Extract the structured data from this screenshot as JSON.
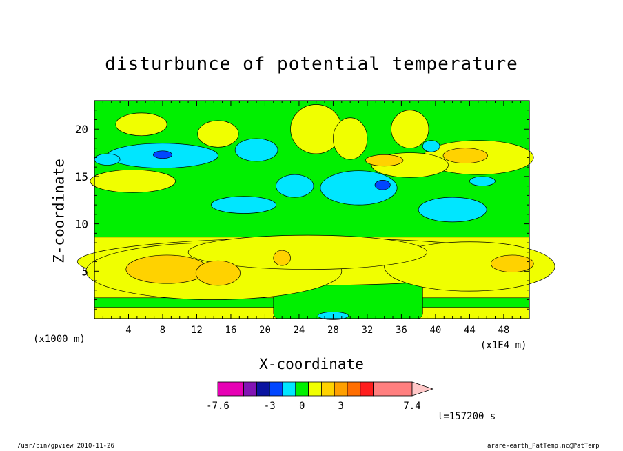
{
  "header": {
    "time_label": "t=157200 s"
  },
  "footer": {
    "left": "/usr/bin/gpview 2010-11-26",
    "right": "arare-earth_PatTemp.nc@PatTemp"
  },
  "chart_data": {
    "type": "heatmap",
    "title": "disturbunce of potential temperature",
    "xlabel": "X-coordinate",
    "ylabel": "Z-coordinate",
    "x_unit": "(x1000 m)",
    "x_scale": "(x1E4 m)",
    "xlim": [
      0,
      51
    ],
    "ylim": [
      0,
      23
    ],
    "x_ticks": [
      4,
      8,
      12,
      16,
      20,
      24,
      28,
      32,
      36,
      40,
      44,
      48
    ],
    "y_ticks": [
      5,
      10,
      15,
      20
    ],
    "background_value": 0,
    "colorbar": {
      "ticks": [
        -7.6,
        -3,
        0,
        3,
        7.4
      ],
      "tick_labels": [
        "-7.6",
        "-3",
        "0",
        "3",
        "7.4"
      ],
      "colors": [
        "#e600b4",
        "#8214b4",
        "#0a14a0",
        "#0046ff",
        "#00e6ff",
        "#00f000",
        "#f0ff00",
        "#ffd200",
        "#ffa000",
        "#ff6e00",
        "#ff1e1e",
        "#ff7f7f",
        "#ffc8c8"
      ],
      "bounds": [
        -7.6,
        -5.6,
        -4.1,
        -3.0,
        -1.5,
        -0.5,
        0.5,
        1.5,
        2.5,
        3.5,
        4.5,
        5.5,
        7.4
      ]
    },
    "features": [
      {
        "v": 0.8,
        "x": 25,
        "y": 6,
        "rx": 27,
        "ry": 2.5
      },
      {
        "v": 0.8,
        "x": 14,
        "y": 5,
        "rx": 15,
        "ry": 3
      },
      {
        "v": 0.8,
        "x": 44,
        "y": 5.5,
        "rx": 10,
        "ry": 2.6
      },
      {
        "v": 0.8,
        "x": 25,
        "y": 7,
        "rx": 14,
        "ry": 1.8
      },
      {
        "v": 2.0,
        "x": 8.5,
        "y": 5.2,
        "rx": 4.8,
        "ry": 1.5
      },
      {
        "v": 2.0,
        "x": 14.5,
        "y": 4.8,
        "rx": 2.6,
        "ry": 1.3
      },
      {
        "v": 2.0,
        "x": 49,
        "y": 5.8,
        "rx": 2.5,
        "ry": 0.9
      },
      {
        "v": 2.0,
        "x": 22,
        "y": 6.4,
        "rx": 1.0,
        "ry": 0.8
      },
      {
        "v": 0.8,
        "x": 4.5,
        "y": 14.5,
        "rx": 5,
        "ry": 1.2
      },
      {
        "v": 0.8,
        "x": 14.5,
        "y": 19.5,
        "rx": 2.4,
        "ry": 1.4
      },
      {
        "v": 0.8,
        "x": 5.5,
        "y": 20.5,
        "rx": 3,
        "ry": 1.2
      },
      {
        "v": 0.8,
        "x": 45,
        "y": 17,
        "rx": 6.5,
        "ry": 1.8
      },
      {
        "v": 0.8,
        "x": 37,
        "y": 16.2,
        "rx": 4.5,
        "ry": 1.3
      },
      {
        "v": 0.8,
        "x": 26,
        "y": 20,
        "rx": 3,
        "ry": 2.6
      },
      {
        "v": 0.8,
        "x": 30,
        "y": 19,
        "rx": 2,
        "ry": 2.2
      },
      {
        "v": 0.8,
        "x": 37,
        "y": 20,
        "rx": 2.2,
        "ry": 2.0
      },
      {
        "v": 2.0,
        "x": 43.5,
        "y": 17.2,
        "rx": 2.6,
        "ry": 0.8
      },
      {
        "v": 2.0,
        "x": 34,
        "y": 16.7,
        "rx": 2.2,
        "ry": 0.6
      },
      {
        "v": -1.0,
        "x": 8,
        "y": 17.2,
        "rx": 6.5,
        "ry": 1.3
      },
      {
        "v": -1.0,
        "x": 17.5,
        "y": 12,
        "rx": 3.8,
        "ry": 0.9
      },
      {
        "v": -1.0,
        "x": 31,
        "y": 13.8,
        "rx": 4.5,
        "ry": 1.8
      },
      {
        "v": -1.0,
        "x": 23.5,
        "y": 14,
        "rx": 2.2,
        "ry": 1.2
      },
      {
        "v": -1.0,
        "x": 42,
        "y": 11.5,
        "rx": 4,
        "ry": 1.3
      },
      {
        "v": -1.0,
        "x": 19,
        "y": 17.8,
        "rx": 2.5,
        "ry": 1.2
      },
      {
        "v": -1.0,
        "x": 45.5,
        "y": 14.5,
        "rx": 1.5,
        "ry": 0.5
      },
      {
        "v": -1.0,
        "x": 39.5,
        "y": 18.2,
        "rx": 1,
        "ry": 0.6
      },
      {
        "v": -1.0,
        "x": 1.5,
        "y": 16.8,
        "rx": 1.5,
        "ry": 0.6
      },
      {
        "v": -2.2,
        "x": 8,
        "y": 17.3,
        "rx": 1.1,
        "ry": 0.4
      },
      {
        "v": -2.2,
        "x": 33.8,
        "y": 14.1,
        "rx": 0.9,
        "ry": 0.5
      },
      {
        "v": -1.0,
        "x": 28,
        "y": 0.3,
        "rx": 1.8,
        "ry": 0.4
      }
    ],
    "bands": [
      {
        "v": 0.8,
        "y0": 0,
        "y1": 1.2
      },
      {
        "v": 0.8,
        "y0": 2.2,
        "y1": 8.6
      }
    ],
    "green_patches": [
      {
        "x0": 21,
        "x1": 38.5,
        "y0": 0,
        "y1": 5
      }
    ]
  }
}
